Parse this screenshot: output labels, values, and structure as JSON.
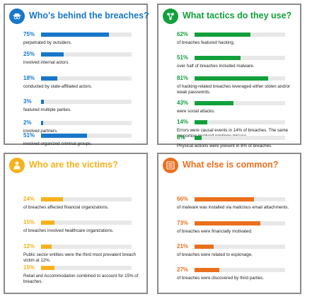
{
  "panels": {
    "who": {
      "title": "Who's behind the breaches?",
      "icon": "anonymous-person-icon",
      "color": "#1877c9",
      "stats": [
        {
          "pct": "75%",
          "value": 75,
          "desc": "perpetrated by outsiders."
        },
        {
          "pct": "25%",
          "value": 25,
          "desc": "involved internal actors."
        },
        {
          "pct": "18%",
          "value": 18,
          "desc": "conducted by state-affiliated actors."
        },
        {
          "pct": "3%",
          "value": 3,
          "desc": "featured multiple parties."
        },
        {
          "pct": "2%",
          "value": 2,
          "desc": "involved partners."
        },
        {
          "pct": "51%",
          "value": 51,
          "desc": "involved organized criminal groups."
        }
      ]
    },
    "tactics": {
      "title": "What tactics do they use?",
      "icon": "network-nodes-icon",
      "color": "#12a03b",
      "stats": [
        {
          "pct": "62%",
          "value": 62,
          "desc": "of breaches featured hacking."
        },
        {
          "pct": "51%",
          "value": 51,
          "desc": "over half of breaches included malware."
        },
        {
          "pct": "81%",
          "value": 81,
          "desc": "of hacking-related breaches leveraged either stolen and/or weak passwords."
        },
        {
          "pct": "43%",
          "value": 43,
          "desc": "were social attacks."
        },
        {
          "pct": "14%",
          "value": 14,
          "desc": "Errors were causal events in 14% of breaches. The same proportion involved privilege misuse."
        },
        {
          "pct": "8%",
          "value": 8,
          "desc": "Physical actions were present in 8% of breaches."
        }
      ]
    },
    "victims": {
      "title": "Who are the victims?",
      "icon": "victim-person-icon",
      "color": "#f6b21c",
      "stats": [
        {
          "pct": "24%",
          "value": 24,
          "desc": "of breaches affected financial organizations."
        },
        {
          "pct": "15%",
          "value": 15,
          "desc": "of breaches involved healthcare organizations."
        },
        {
          "pct": "12%",
          "value": 12,
          "desc": "Public sector entities were the third most prevalent breach victim at 12%."
        },
        {
          "pct": "15%",
          "value": 15,
          "desc": "Retail and Accommodation combined to account for 15% of breaches."
        }
      ]
    },
    "common": {
      "title": "What else is common?",
      "icon": "list-document-icon",
      "color": "#e9701e",
      "stats": [
        {
          "pct": "66%",
          "value": 66,
          "desc": "of malware was installed via malicious email attachments."
        },
        {
          "pct": "73%",
          "value": 73,
          "desc": "of breaches were financially motivated."
        },
        {
          "pct": "21%",
          "value": 21,
          "desc": "of breaches were related to espionage."
        },
        {
          "pct": "27%",
          "value": 27,
          "desc": "of breaches were discovered by third parties."
        }
      ]
    }
  }
}
